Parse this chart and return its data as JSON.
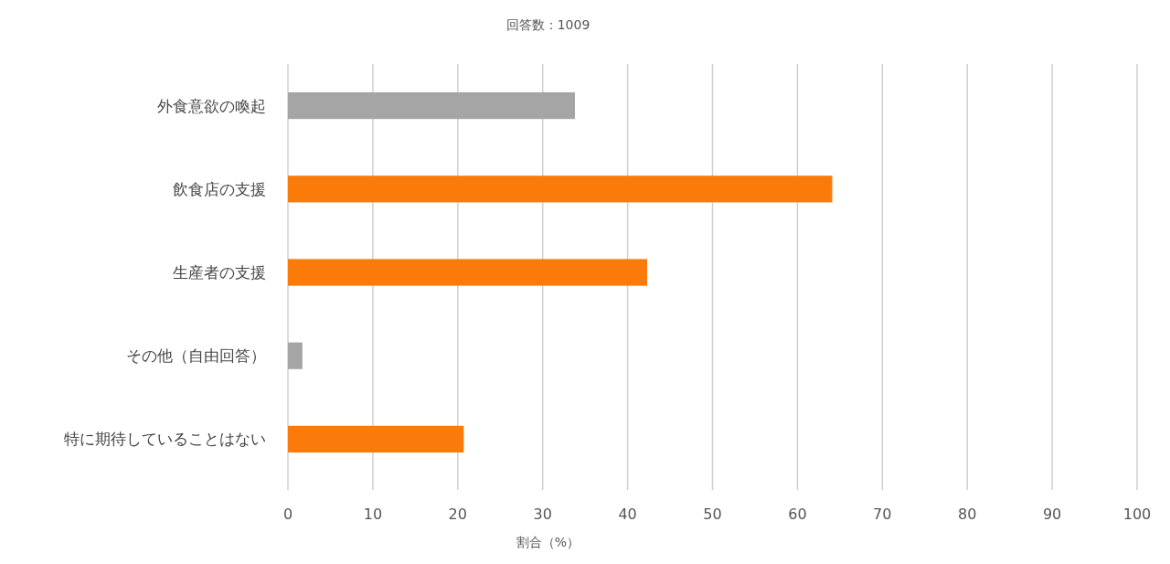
{
  "chart_data": {
    "type": "bar",
    "orientation": "horizontal",
    "title": "回答数：1009",
    "xlabel": "割合（%）",
    "categories": [
      "外食意欲の喚起",
      "飲食店の支援",
      "生産者の支援",
      "その他（自由回答）",
      "特に期待していることはない"
    ],
    "values": [
      33.8,
      64.1,
      42.3,
      1.7,
      20.7
    ],
    "colors": [
      "#a5a5a5",
      "#fa7a0a",
      "#fa7a0a",
      "#a5a5a5",
      "#fa7a0a"
    ],
    "xlim": [
      0,
      100
    ],
    "xticks": [
      0,
      10,
      20,
      30,
      40,
      50,
      60,
      70,
      80,
      90,
      100
    ],
    "grid": "x"
  }
}
